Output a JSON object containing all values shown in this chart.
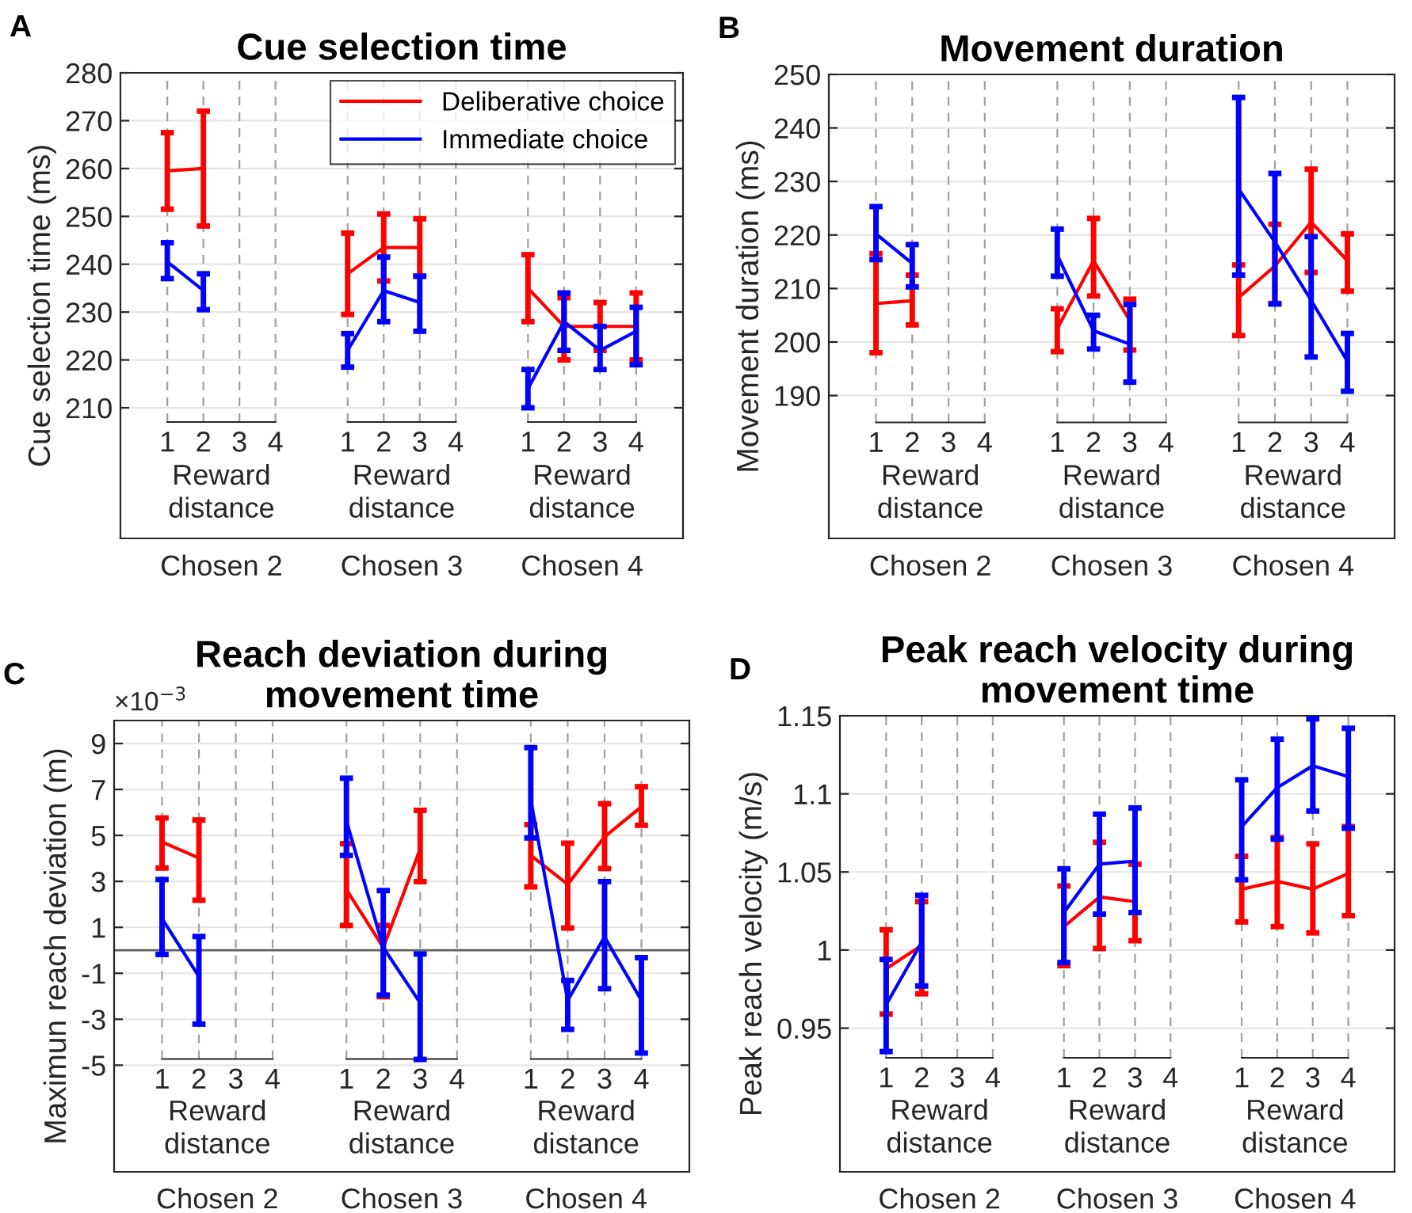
{
  "chart_data": [
    {
      "type": "line",
      "title": "Cue selection time",
      "ylabel": "Cue selection time (ms)",
      "annotations": [
        "A",
        "Reward\ndistance",
        "Reward\ndistance",
        "Reward\ndistance",
        "Chosen 2",
        "Chosen 3",
        "Chosen 4"
      ],
      "categories": [
        "1",
        "2",
        "3",
        "4",
        null,
        "1",
        "2",
        "3",
        "4",
        null,
        "1",
        "2",
        "3",
        "4"
      ],
      "ylim": [
        182.7,
        280
      ],
      "yticks": [
        210,
        220,
        230,
        240,
        250,
        260,
        270,
        280
      ],
      "grid": true,
      "legend": "top right",
      "marker": "none",
      "line_style": "solid",
      "series": [
        {
          "name": "Deliberative choice",
          "color": "#ff0000",
          "values": [
            259.5,
            260,
            null,
            null,
            null,
            238,
            243.5,
            243.5,
            null,
            null,
            235,
            227,
            227,
            227
          ],
          "errors": [
            [
              251.5,
              267.5
            ],
            [
              248,
              272
            ],
            null,
            null,
            null,
            [
              229.5,
              246.5
            ],
            [
              236.5,
              250.5
            ],
            [
              237.5,
              249.5
            ],
            null,
            null,
            [
              228,
              242
            ],
            [
              220,
              233
            ],
            [
              222,
              232
            ],
            [
              220,
              234
            ]
          ]
        },
        {
          "name": "Immediate choice",
          "color": "#0000ff",
          "values": [
            240.5,
            234.5,
            null,
            null,
            null,
            222,
            234.5,
            232,
            null,
            null,
            214,
            228,
            222,
            226
          ],
          "errors": [
            [
              237,
              244.5
            ],
            [
              230.5,
              238
            ],
            null,
            null,
            null,
            [
              218.5,
              225.5
            ],
            [
              228,
              241.5
            ],
            [
              226,
              237.5
            ],
            null,
            null,
            [
              210,
              218
            ],
            [
              222,
              234
            ],
            [
              218,
              227
            ],
            [
              219,
              231
            ]
          ]
        }
      ]
    },
    {
      "type": "line",
      "title": "Movement duration",
      "ylabel": "Movement duration (ms)",
      "annotations": [
        "B",
        "Reward\ndistance",
        "Reward\ndistance",
        "Reward\ndistance",
        "Chosen 2",
        "Chosen 3",
        "Chosen 4"
      ],
      "categories": [
        "1",
        "2",
        "3",
        "4",
        null,
        "1",
        "2",
        "3",
        "4",
        null,
        "1",
        "2",
        "3",
        "4"
      ],
      "ylim": [
        163.3,
        250
      ],
      "yticks": [
        190,
        200,
        210,
        220,
        230,
        240,
        250
      ],
      "grid": true,
      "marker": "none",
      "line_style": "solid",
      "series": [
        {
          "color": "#ff0000",
          "values": [
            207.2,
            207.7,
            null,
            null,
            null,
            202.5,
            215.2,
            204,
            null,
            null,
            208.3,
            214.2,
            222.4,
            215.2
          ],
          "errors": [
            [
              198,
              216.5
            ],
            [
              203.2,
              212.5
            ],
            null,
            null,
            null,
            [
              198.2,
              206.2
            ],
            [
              208.6,
              223.1
            ],
            [
              198.5,
              208
            ],
            null,
            null,
            [
              201.2,
              214.4
            ],
            [
              207.2,
              222
            ],
            [
              213,
              232.3
            ],
            [
              209.5,
              220.2
            ]
          ]
        },
        {
          "color": "#0000ff",
          "values": [
            220.2,
            214.7,
            null,
            null,
            null,
            216.2,
            202.1,
            199.6,
            null,
            null,
            228.6,
            218.7,
            207.8,
            196.4
          ],
          "errors": [
            [
              215.4,
              225.3
            ],
            [
              210.3,
              218.2
            ],
            null,
            null,
            null,
            [
              212.3,
              221.1
            ],
            [
              198.7,
              205
            ],
            [
              192.5,
              207
            ],
            null,
            null,
            [
              212.5,
              245.7
            ],
            [
              207.1,
              231.5
            ],
            [
              197.2,
              219.7
            ],
            [
              190.8,
              201.6
            ]
          ]
        }
      ]
    },
    {
      "type": "line",
      "title": "Reach deviation during\nmovement time",
      "ylabel": "Maximun reach deviation (m)",
      "annotations": [
        "C",
        "Reward\ndistance",
        "Reward\ndistance",
        "Reward\ndistance",
        "Chosen 2",
        "Chosen 3",
        "Chosen 4",
        "×10$^{−3}$"
      ],
      "categories": [
        "1",
        "2",
        "3",
        "4",
        null,
        "1",
        "2",
        "3",
        "4",
        null,
        "1",
        "2",
        "3",
        "4"
      ],
      "ylim": [
        -9.64,
        10
      ],
      "yticks": [
        -5,
        -3,
        -1,
        1,
        3,
        5,
        7,
        9
      ],
      "ref_lines": [
        {
          "axis": "y",
          "value": 0,
          "color": "#606060"
        }
      ],
      "grid": true,
      "marker": "none",
      "line_style": "solid",
      "series": [
        {
          "color": "#ff0000",
          "values": [
            4.71,
            4.02,
            null,
            null,
            null,
            2.64,
            0.12,
            4.41,
            null,
            null,
            4.13,
            2.87,
            4.94,
            6.25
          ],
          "errors": [
            [
              3.58,
              5.76
            ],
            [
              2.18,
              5.67
            ],
            null,
            null,
            null,
            [
              1.08,
              4.64
            ],
            [
              -2.02,
              1.08
            ],
            [
              2.99,
              6.09
            ],
            null,
            null,
            [
              2.76,
              5.47
            ],
            [
              0.97,
              4.66
            ],
            [
              3.56,
              6.38
            ],
            [
              5.44,
              7.12
            ]
          ]
        },
        {
          "color": "#0000ff",
          "values": [
            1.38,
            -1.14,
            null,
            null,
            null,
            5.63,
            0.12,
            -2.29,
            null,
            null,
            6.54,
            -2.18,
            0.58,
            -2.18
          ],
          "errors": [
            [
              -0.18,
              3.08
            ],
            [
              -3.21,
              0.6
            ],
            null,
            null,
            null,
            [
              4.13,
              7.49
            ],
            [
              -1.95,
              2.6
            ],
            [
              -4.75,
              -0.16
            ],
            null,
            null,
            [
              4.89,
              8.82
            ],
            [
              -3.44,
              -1.31
            ],
            [
              -1.67,
              2.99
            ],
            [
              -4.47,
              -0.32
            ]
          ]
        }
      ]
    },
    {
      "type": "line",
      "title": "Peak reach velocity during\nmovement time",
      "ylabel": "Peak reach velocity (m/s)",
      "annotations": [
        "D",
        "Reward\ndistance",
        "Reward\ndistance",
        "Reward\ndistance",
        "Chosen 2",
        "Chosen 3",
        "Chosen 4"
      ],
      "categories": [
        "1",
        "2",
        "3",
        "4",
        null,
        "1",
        "2",
        "3",
        "4",
        null,
        "1",
        "2",
        "3",
        "4"
      ],
      "ylim": [
        0.858,
        1.15
      ],
      "yticks": [
        0.95,
        1,
        1.05,
        1.1,
        1.15
      ],
      "grid": true,
      "marker": "none",
      "line_style": "solid",
      "series": [
        {
          "color": "#ff0000",
          "values": [
            0.988,
            1.003,
            null,
            null,
            null,
            1.015,
            1.034,
            1.031,
            null,
            null,
            1.039,
            1.044,
            1.039,
            1.049
          ],
          "errors": [
            [
              0.959,
              1.013
            ],
            [
              0.972,
              1.031
            ],
            null,
            null,
            null,
            [
              0.99,
              1.041
            ],
            [
              1.001,
              1.069
            ],
            [
              1.006,
              1.055
            ],
            null,
            null,
            [
              1.018,
              1.06
            ],
            [
              1.015,
              1.072
            ],
            [
              1.011,
              1.068
            ],
            [
              1.022,
              1.079
            ]
          ]
        },
        {
          "color": "#0000ff",
          "values": [
            0.965,
            1.005,
            null,
            null,
            null,
            1.024,
            1.055,
            1.057,
            null,
            null,
            1.079,
            1.104,
            1.118,
            1.111
          ],
          "errors": [
            [
              0.935,
              0.994
            ],
            [
              0.977,
              1.035
            ],
            null,
            null,
            null,
            [
              0.992,
              1.052
            ],
            [
              1.023,
              1.087
            ],
            [
              1.024,
              1.091
            ],
            null,
            null,
            [
              1.045,
              1.109
            ],
            [
              1.071,
              1.135
            ],
            [
              1.089,
              1.148
            ],
            [
              1.078,
              1.142
            ]
          ]
        }
      ]
    }
  ]
}
